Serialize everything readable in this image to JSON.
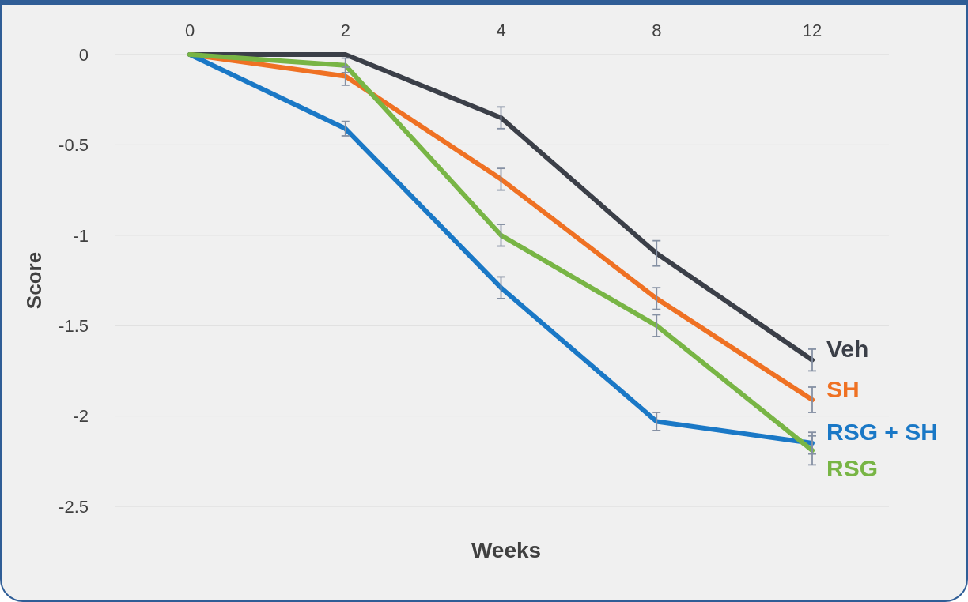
{
  "chart_data": {
    "type": "line",
    "xlabel": "Weeks",
    "ylabel": "Score",
    "categories": [
      "0",
      "2",
      "4",
      "8",
      "12"
    ],
    "ylim": [
      -2.5,
      0
    ],
    "yticks": [
      0,
      -0.5,
      -1,
      -1.5,
      -2,
      -2.5
    ],
    "grid": "y",
    "marker": "none",
    "line_style": "solid",
    "series": [
      {
        "name": "Veh",
        "color": "#3b3f48",
        "values": [
          0,
          0,
          -0.35,
          -1.1,
          -1.69
        ],
        "errors": [
          null,
          null,
          0.06,
          0.07,
          0.06
        ]
      },
      {
        "name": "SH",
        "color": "#ef7123",
        "values": [
          0,
          -0.12,
          -0.69,
          -1.35,
          -1.91
        ],
        "errors": [
          null,
          0.05,
          0.06,
          0.06,
          0.07
        ]
      },
      {
        "name": "RSG + SH",
        "color": "#1a78c6",
        "values": [
          0,
          -0.41,
          -1.29,
          -2.03,
          -2.15
        ],
        "errors": [
          null,
          0.04,
          0.06,
          0.05,
          0.06
        ]
      },
      {
        "name": "RSG",
        "color": "#78b545",
        "values": [
          0,
          -0.06,
          -1.0,
          -1.5,
          -2.19
        ],
        "errors": [
          null,
          0.04,
          0.06,
          0.06,
          0.08
        ]
      }
    ]
  }
}
